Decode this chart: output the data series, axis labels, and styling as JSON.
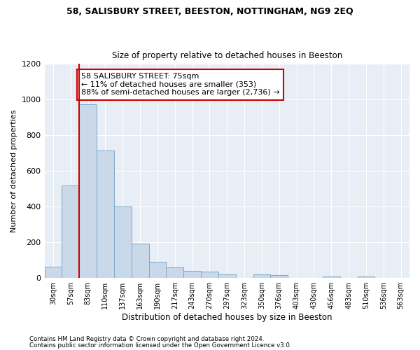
{
  "title1": "58, SALISBURY STREET, BEESTON, NOTTINGHAM, NG9 2EQ",
  "title2": "Size of property relative to detached houses in Beeston",
  "xlabel": "Distribution of detached houses by size in Beeston",
  "ylabel": "Number of detached properties",
  "categories": [
    "30sqm",
    "57sqm",
    "83sqm",
    "110sqm",
    "137sqm",
    "163sqm",
    "190sqm",
    "217sqm",
    "243sqm",
    "270sqm",
    "297sqm",
    "323sqm",
    "350sqm",
    "376sqm",
    "403sqm",
    "430sqm",
    "456sqm",
    "483sqm",
    "510sqm",
    "536sqm",
    "563sqm"
  ],
  "values": [
    65,
    520,
    975,
    715,
    400,
    193,
    90,
    60,
    42,
    35,
    20,
    0,
    20,
    18,
    0,
    0,
    10,
    0,
    8,
    0,
    0
  ],
  "bar_color": "#c9d9ea",
  "bar_edge_color": "#7aaac8",
  "vline_color": "#cc0000",
  "vline_position": 2.0,
  "annotation_text": "58 SALISBURY STREET: 75sqm\n← 11% of detached houses are smaller (353)\n88% of semi-detached houses are larger (2,736) →",
  "annotation_box_color": "#ffffff",
  "annotation_box_edge": "#cc0000",
  "ylim": [
    0,
    1200
  ],
  "yticks": [
    0,
    200,
    400,
    600,
    800,
    1000,
    1200
  ],
  "footer1": "Contains HM Land Registry data © Crown copyright and database right 2024.",
  "footer2": "Contains public sector information licensed under the Open Government Licence v3.0.",
  "bg_color": "#ffffff",
  "plot_bg_color": "#e8eef5"
}
